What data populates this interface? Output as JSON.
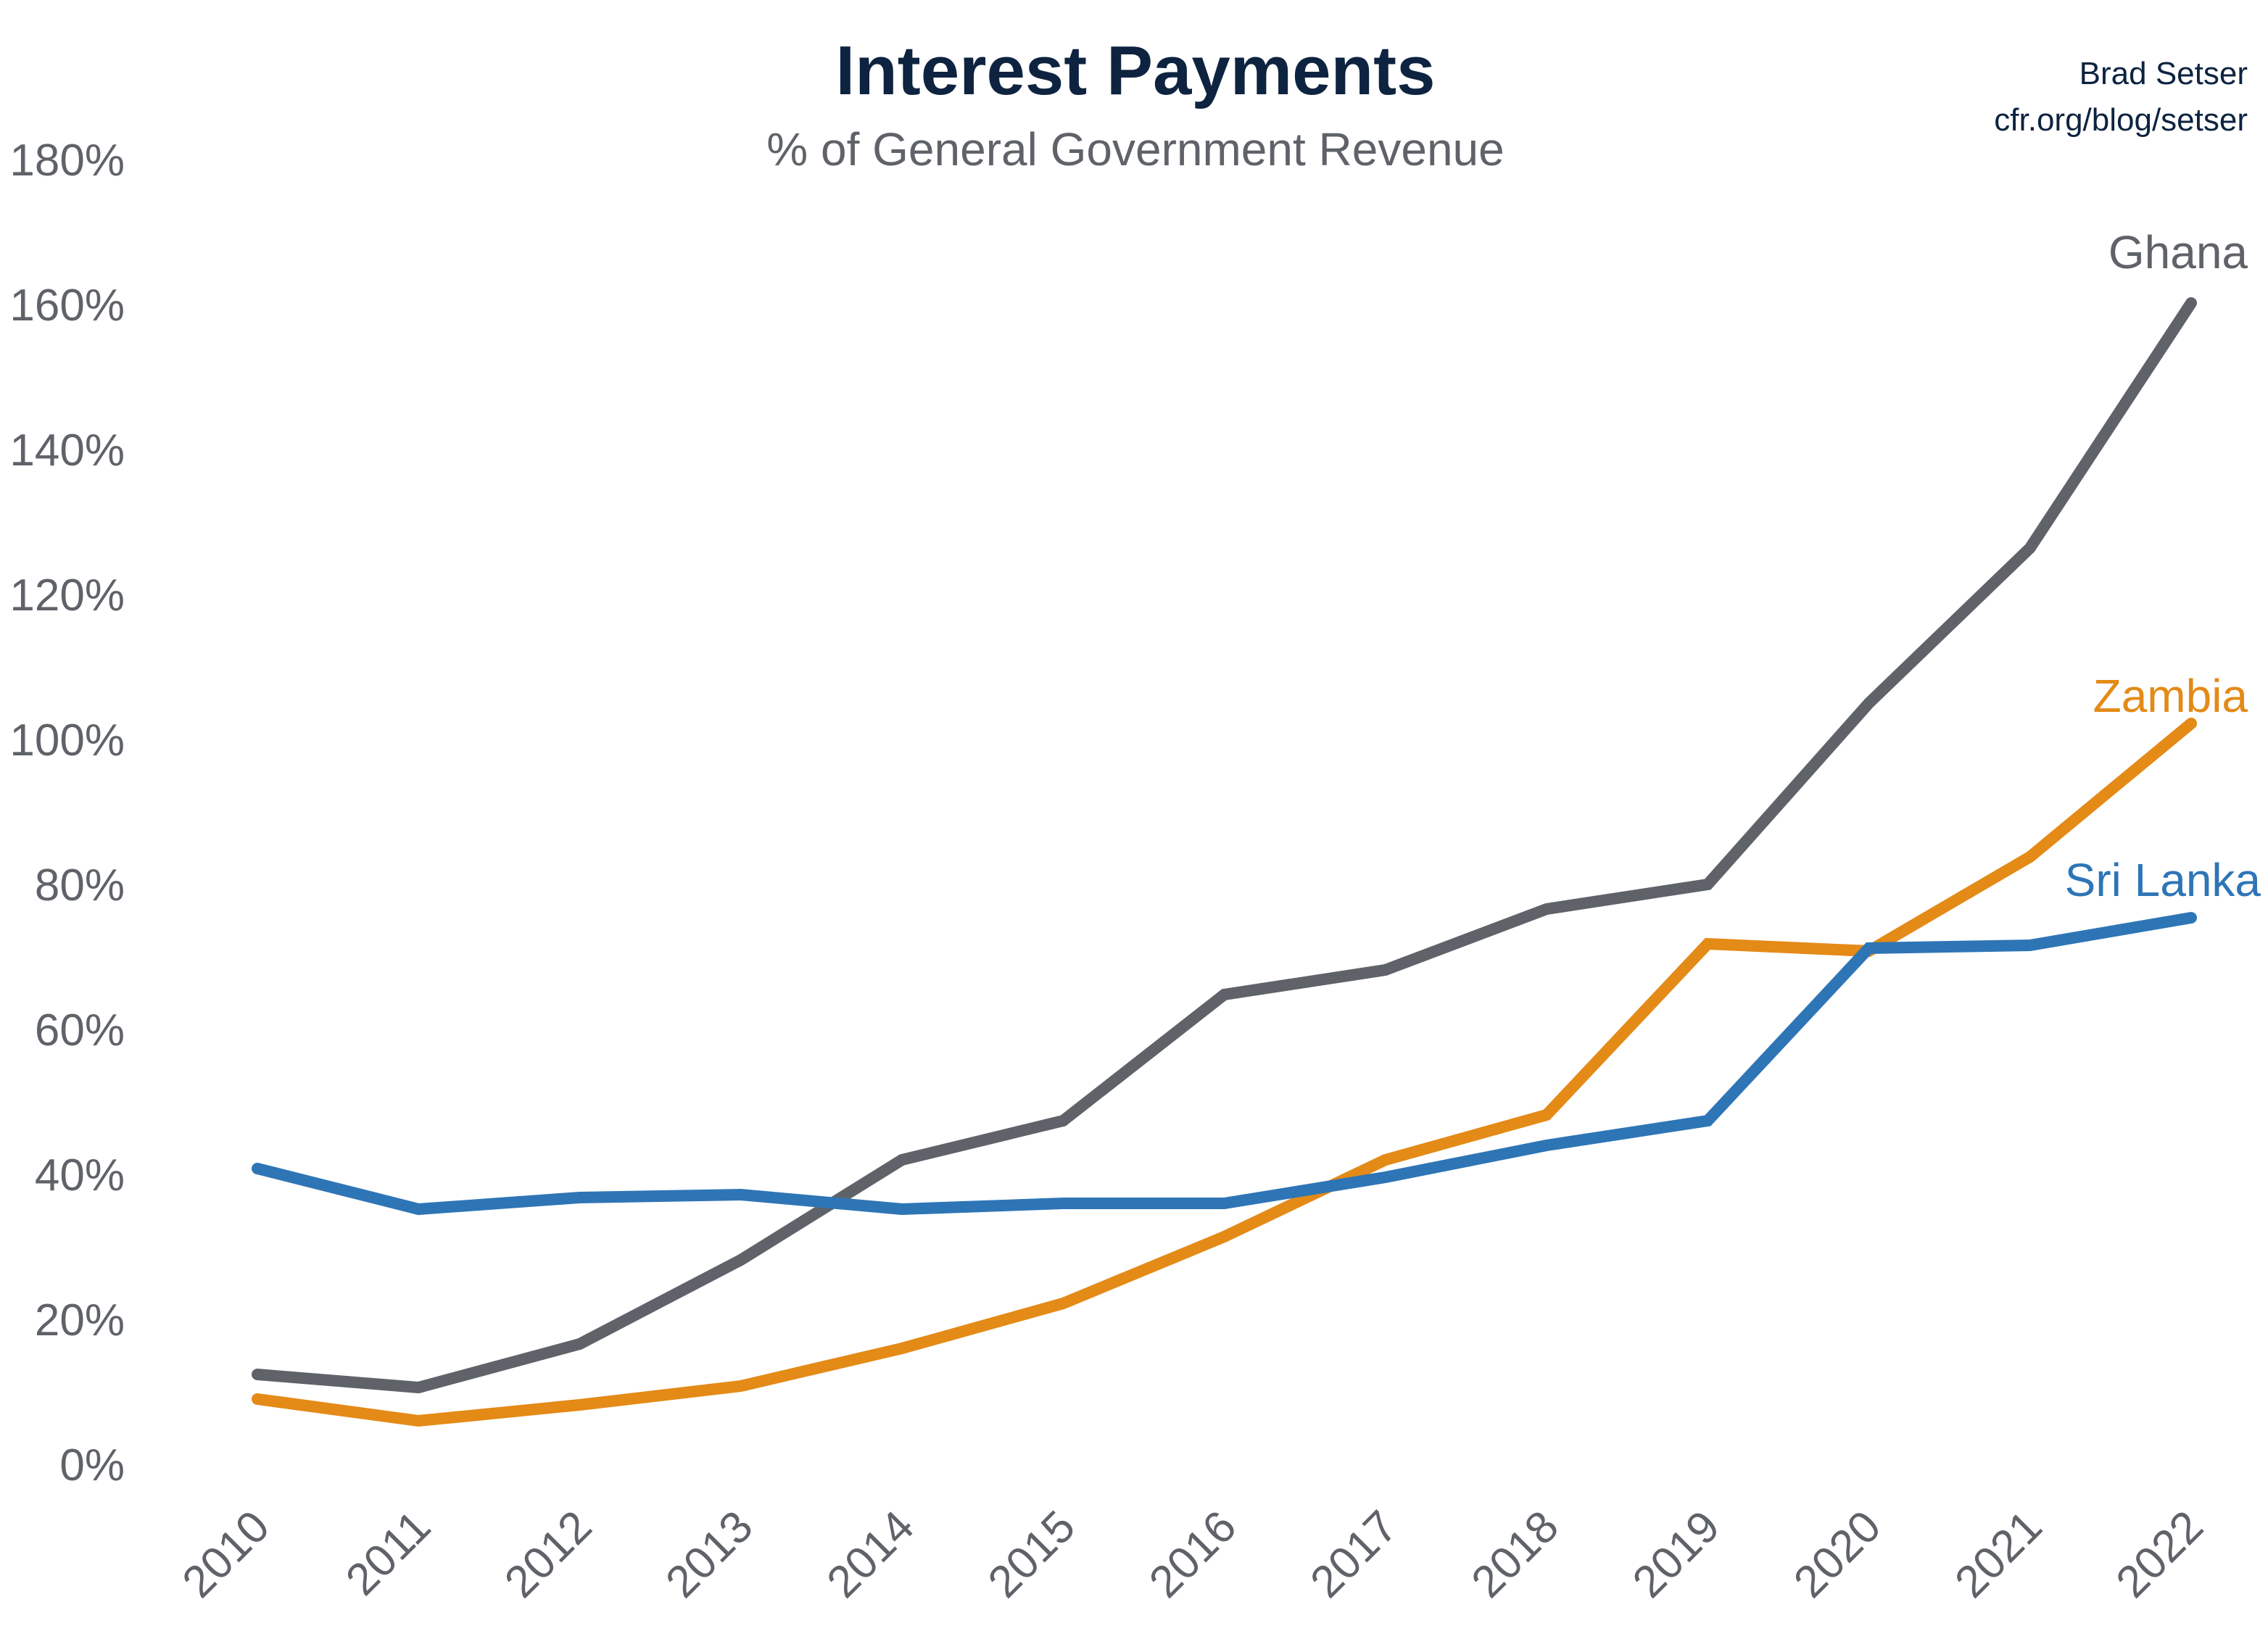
{
  "chart_data": {
    "type": "line",
    "title": "Interest Payments",
    "subtitle": "% of General Government Revenue",
    "credit": [
      "Brad Setser",
      "cfr.org/blog/setser"
    ],
    "xlabel": "",
    "ylabel": "",
    "x": [
      "2010",
      "2011",
      "2012",
      "2013",
      "2014",
      "2015",
      "2016",
      "2017",
      "2018",
      "2019",
      "2020",
      "2021",
      "2022"
    ],
    "ylim": [
      0,
      180
    ],
    "yticks": [
      "0%",
      "20%",
      "40%",
      "60%",
      "80%",
      "100%",
      "120%",
      "140%",
      "160%",
      "180%"
    ],
    "ytick_values": [
      0,
      20,
      40,
      60,
      80,
      100,
      120,
      140,
      160,
      180
    ],
    "grid": false,
    "legend": "direct labels at line ends",
    "series": [
      {
        "name": "Ghana",
        "color": "#5f6369",
        "values": [
          12.4,
          10.6,
          16.6,
          28.2,
          42.0,
          47.4,
          64.8,
          68.2,
          76.6,
          80.0,
          105.0,
          126.4,
          160.2
        ]
      },
      {
        "name": "Zambia",
        "color": "#e48a17",
        "values": [
          9.0,
          6.0,
          8.2,
          10.8,
          16.0,
          22.2,
          31.4,
          42.0,
          48.2,
          71.8,
          70.8,
          83.8,
          102.2
        ]
      },
      {
        "name": "Sri Lanka",
        "color": "#2e75b6",
        "values": [
          40.8,
          35.2,
          36.8,
          37.2,
          35.2,
          36.0,
          36.0,
          39.6,
          44.0,
          47.4,
          71.2,
          71.6,
          75.4
        ]
      }
    ]
  }
}
